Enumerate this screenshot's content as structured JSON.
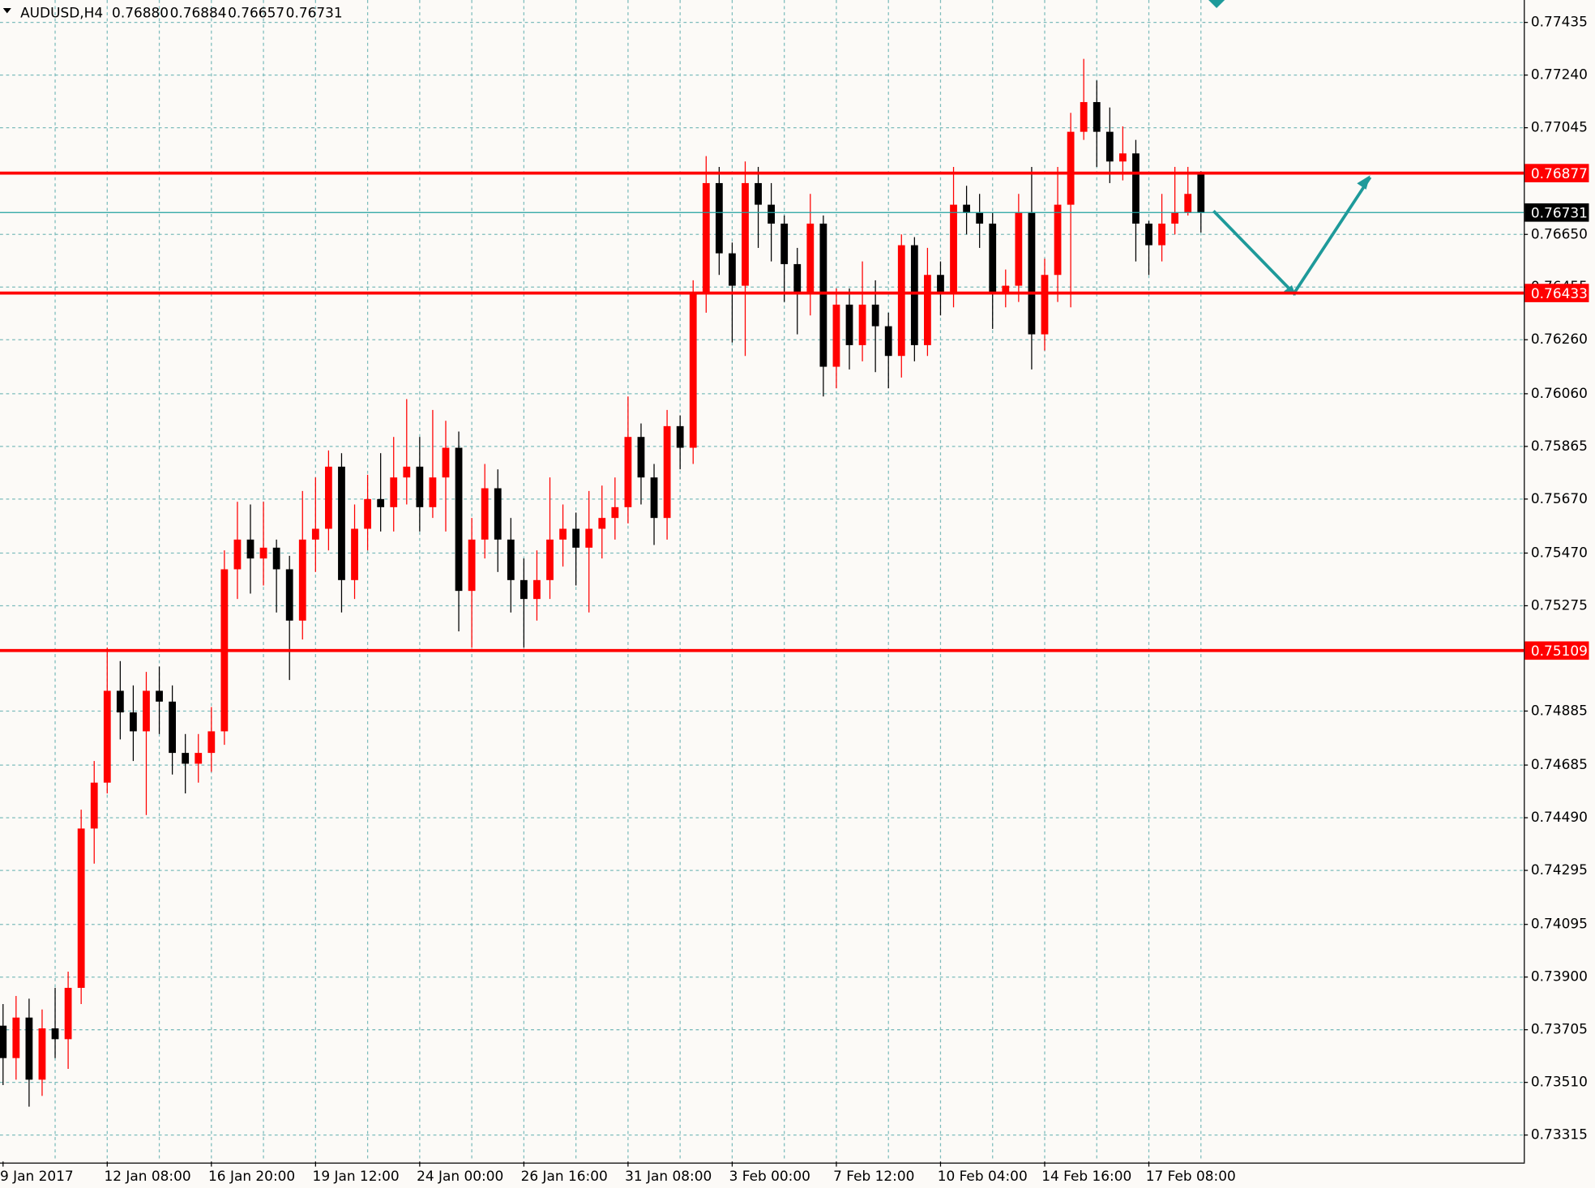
{
  "header": {
    "symbol": "AUDUSD,H4",
    "open": "0.76880",
    "high": "0.76884",
    "low": "0.76657",
    "close": "0.76731"
  },
  "chart_data": {
    "type": "candlestick",
    "categories": [
      "9 Jan 2017",
      null,
      null,
      null,
      null,
      null,
      null,
      null,
      "12 Jan 08:00",
      null,
      null,
      null,
      null,
      null,
      null,
      null,
      "16 Jan 20:00",
      null,
      null,
      null,
      null,
      null,
      null,
      null,
      "19 Jan 12:00",
      null,
      null,
      null,
      null,
      null,
      null,
      null,
      "24 Jan 00:00",
      null,
      null,
      null,
      null,
      null,
      null,
      null,
      "26 Jan 16:00",
      null,
      null,
      null,
      null,
      null,
      null,
      null,
      "31 Jan 08:00",
      null,
      null,
      null,
      null,
      null,
      null,
      null,
      "3 Feb 00:00",
      null,
      null,
      null,
      null,
      null,
      null,
      null,
      "7 Feb 12:00",
      null,
      null,
      null,
      null,
      null,
      null,
      null,
      "10 Feb 04:00",
      null,
      null,
      null,
      null,
      null,
      null,
      null,
      "14 Feb 16:00",
      null,
      null,
      null,
      null,
      null,
      null,
      null,
      "17 Feb 08:00",
      null,
      null,
      null,
      null
    ],
    "open": [
      0.7372,
      0.736,
      0.7375,
      0.7352,
      0.7371,
      0.7367,
      0.7386,
      0.7445,
      0.7462,
      0.7496,
      0.7488,
      0.7481,
      0.7496,
      0.7492,
      0.7473,
      0.7469,
      0.7473,
      0.7481,
      0.7541,
      0.7552,
      0.7545,
      0.7549,
      0.7541,
      0.7522,
      0.7552,
      0.7556,
      0.7579,
      0.7537,
      0.7556,
      0.7567,
      0.7564,
      0.7575,
      0.7579,
      0.7564,
      0.7575,
      0.7586,
      0.7533,
      0.7552,
      0.7571,
      0.7552,
      0.7537,
      0.753,
      0.7537,
      0.7552,
      0.7556,
      0.7549,
      0.7556,
      0.756,
      0.7564,
      0.759,
      0.7575,
      0.756,
      0.7594,
      0.7586,
      0.7643,
      0.7684,
      0.7658,
      0.7646,
      0.7684,
      0.7676,
      0.7669,
      0.7654,
      0.7643,
      0.7669,
      0.7616,
      0.7639,
      0.7624,
      0.7639,
      0.7631,
      0.762,
      0.7661,
      0.7624,
      0.765,
      0.7643,
      0.7676,
      0.7673,
      0.7669,
      0.7643,
      0.7646,
      0.7673,
      0.7628,
      0.765,
      0.7676,
      0.7703,
      0.7714,
      0.7703,
      0.7692,
      0.7695,
      0.7669,
      0.7661,
      0.7669,
      0.7673,
      0.7688
    ],
    "high": [
      0.738,
      0.7383,
      0.7382,
      0.7378,
      0.7386,
      0.7392,
      0.7452,
      0.747,
      0.7512,
      0.7507,
      0.7498,
      0.7503,
      0.7505,
      0.7498,
      0.748,
      0.748,
      0.749,
      0.7548,
      0.7566,
      0.7565,
      0.7566,
      0.7552,
      0.7546,
      0.757,
      0.7575,
      0.7585,
      0.7584,
      0.7565,
      0.7576,
      0.7584,
      0.759,
      0.7604,
      0.759,
      0.76,
      0.7596,
      0.7592,
      0.756,
      0.758,
      0.7578,
      0.756,
      0.7545,
      0.7548,
      0.7575,
      0.7565,
      0.7562,
      0.757,
      0.7572,
      0.7575,
      0.7605,
      0.7595,
      0.758,
      0.76,
      0.7598,
      0.7648,
      0.7694,
      0.769,
      0.7662,
      0.7692,
      0.769,
      0.7684,
      0.7672,
      0.766,
      0.768,
      0.7672,
      0.7645,
      0.7645,
      0.7655,
      0.7648,
      0.7636,
      0.7665,
      0.7664,
      0.766,
      0.7655,
      0.769,
      0.7683,
      0.768,
      0.7673,
      0.7652,
      0.768,
      0.769,
      0.7656,
      0.769,
      0.771,
      0.773,
      0.7722,
      0.7712,
      0.7705,
      0.77,
      0.767,
      0.768,
      0.769,
      0.769,
      0.76884
    ],
    "low": [
      0.735,
      0.7352,
      0.7342,
      0.7346,
      0.736,
      0.7356,
      0.738,
      0.7432,
      0.7458,
      0.7478,
      0.747,
      0.745,
      0.748,
      0.7465,
      0.7458,
      0.7462,
      0.7466,
      0.7476,
      0.753,
      0.7532,
      0.7535,
      0.7525,
      0.75,
      0.7515,
      0.754,
      0.7548,
      0.7525,
      0.753,
      0.7548,
      0.7555,
      0.7555,
      0.7565,
      0.7555,
      0.756,
      0.7555,
      0.7518,
      0.7512,
      0.7545,
      0.754,
      0.7525,
      0.7512,
      0.7522,
      0.753,
      0.7542,
      0.7535,
      0.7525,
      0.7545,
      0.7552,
      0.7558,
      0.7565,
      0.755,
      0.7552,
      0.7578,
      0.758,
      0.7636,
      0.765,
      0.7625,
      0.762,
      0.766,
      0.7655,
      0.764,
      0.7628,
      0.7635,
      0.7605,
      0.7608,
      0.7615,
      0.7618,
      0.7614,
      0.7608,
      0.7612,
      0.7618,
      0.762,
      0.7635,
      0.7638,
      0.7665,
      0.766,
      0.763,
      0.7638,
      0.764,
      0.7615,
      0.7622,
      0.764,
      0.7638,
      0.77,
      0.769,
      0.7684,
      0.7685,
      0.7655,
      0.765,
      0.7655,
      0.7665,
      0.7672,
      0.76657
    ],
    "close": [
      0.736,
      0.7375,
      0.7352,
      0.7371,
      0.7367,
      0.7386,
      0.7445,
      0.7462,
      0.7496,
      0.7488,
      0.7481,
      0.7496,
      0.7492,
      0.7473,
      0.7469,
      0.7473,
      0.7481,
      0.7541,
      0.7552,
      0.7545,
      0.7549,
      0.7541,
      0.7522,
      0.7552,
      0.7556,
      0.7579,
      0.7537,
      0.7556,
      0.7567,
      0.7564,
      0.7575,
      0.7579,
      0.7564,
      0.7575,
      0.7586,
      0.7533,
      0.7552,
      0.7571,
      0.7552,
      0.7537,
      0.753,
      0.7537,
      0.7552,
      0.7556,
      0.7549,
      0.7556,
      0.756,
      0.7564,
      0.759,
      0.7575,
      0.756,
      0.7594,
      0.7586,
      0.7643,
      0.7684,
      0.7658,
      0.7646,
      0.7684,
      0.7676,
      0.7669,
      0.7654,
      0.7643,
      0.7669,
      0.7616,
      0.7639,
      0.7624,
      0.7639,
      0.7631,
      0.762,
      0.7661,
      0.7624,
      0.765,
      0.7643,
      0.7676,
      0.7673,
      0.7669,
      0.7643,
      0.7646,
      0.7673,
      0.7628,
      0.765,
      0.7676,
      0.7703,
      0.7714,
      0.7703,
      0.7692,
      0.7695,
      0.7669,
      0.7661,
      0.7669,
      0.7673,
      0.768,
      0.76731
    ],
    "up_color": "#ff0000",
    "down_color": "#000000",
    "levels": [
      0.76877,
      0.76433,
      0.75109
    ],
    "level_color": "#ff0000",
    "current_price": 0.76731,
    "current_color": "#20a0a0",
    "ylim": [
      0.73217,
      0.77518
    ],
    "yticks": [
      0.77435,
      {
        "value": 0.7724,
        "label": "0.77240"
      },
      0.77045,
      {
        "value": 0.7665,
        "label": "0.76650"
      },
      0.76455,
      {
        "value": 0.7626,
        "label": "0.76260"
      },
      {
        "value": 0.7606,
        "label": "0.76060"
      },
      0.75865,
      {
        "value": 0.7567,
        "label": "0.75670"
      },
      {
        "value": 0.7547,
        "label": "0.75470"
      },
      0.75275,
      0.74885,
      0.74685,
      {
        "value": 0.7449,
        "label": "0.74490"
      },
      0.74295,
      0.74095,
      {
        "value": 0.739,
        "label": "0.73900"
      },
      0.73705,
      {
        "value": 0.7351,
        "label": "0.73510"
      },
      0.73315
    ],
    "grid": true
  }
}
